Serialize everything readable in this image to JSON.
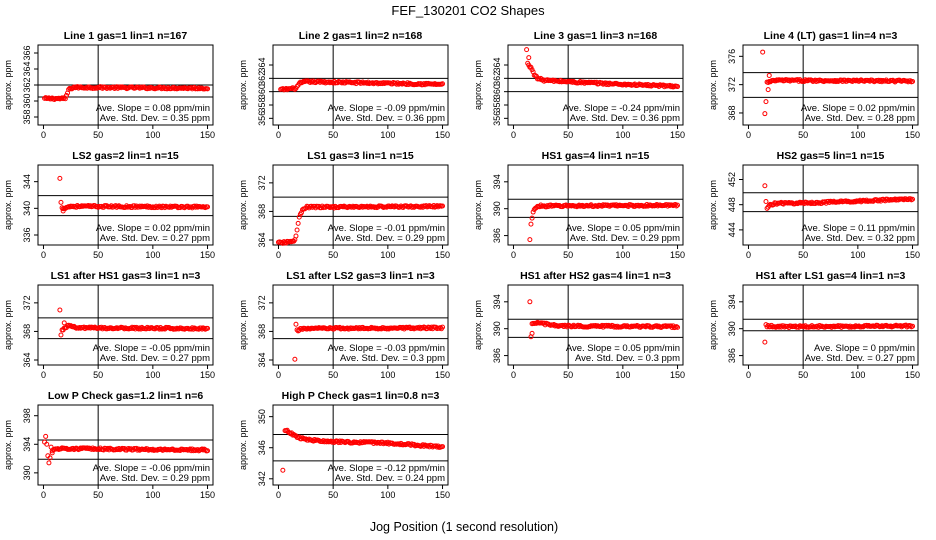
{
  "title": "FEF_130201  CO2 Shapes",
  "xlabel": "Jog Position (1 second resolution)",
  "marker_color": "#ff0000",
  "chart_data": [
    {
      "type": "scatter",
      "title": "Line 1 gas=1 lin=1 n=167",
      "ylabel": "approx. ppm",
      "xlim": [
        -5,
        155
      ],
      "ylim": [
        357,
        367
      ],
      "yticks": [
        358,
        360,
        362,
        364,
        366
      ],
      "xticks": [
        0,
        50,
        100,
        150
      ],
      "ref_lines": [
        362,
        360.5
      ],
      "stats": [
        "Ave. Slope = 0.08 ppm/min",
        "Ave. Std. Dev. = 0.35 ppm"
      ],
      "series": [
        {
          "name": "",
          "profile": [
            [
              1,
              360.3
            ],
            [
              20,
              360.3
            ],
            [
              23,
              361.4
            ],
            [
              27,
              361.7
            ],
            [
              150,
              361.6
            ]
          ],
          "outliers": []
        }
      ]
    },
    {
      "type": "scatter",
      "title": "Line 2 gas=1 lin=2 n=168",
      "ylabel": "approx. ppm",
      "xlim": [
        -5,
        155
      ],
      "ylim": [
        355,
        367
      ],
      "yticks": [
        356,
        358,
        360,
        362,
        364
      ],
      "xticks": [
        0,
        50,
        100,
        150
      ],
      "ref_lines": [
        362,
        360
      ],
      "stats": [
        "Ave. Slope = -0.09 ppm/min",
        "Ave. Std. Dev. = 0.36 ppm"
      ],
      "series": [
        {
          "name": "",
          "profile": [
            [
              2,
              360.3
            ],
            [
              16,
              360.5
            ],
            [
              20,
              361.3
            ],
            [
              25,
              361.5
            ],
            [
              150,
              361.1
            ]
          ],
          "outliers": []
        }
      ]
    },
    {
      "type": "scatter",
      "title": "Line 3 gas=1 lin=3 n=168",
      "ylabel": "approx. ppm",
      "xlim": [
        -5,
        155
      ],
      "ylim": [
        355,
        367
      ],
      "yticks": [
        356,
        358,
        360,
        362,
        364
      ],
      "xticks": [
        0,
        50,
        100,
        150
      ],
      "ref_lines": [
        362,
        360
      ],
      "stats": [
        "Ave. Slope = -0.24 ppm/min",
        "Ave. Std. Dev. = 0.36 ppm"
      ],
      "series": [
        {
          "name": "",
          "profile": [
            [
              13,
              364.2
            ],
            [
              15,
              363.7
            ],
            [
              17,
              363.4
            ],
            [
              19,
              362.6
            ],
            [
              22,
              362
            ],
            [
              28,
              361.7
            ],
            [
              60,
              361.4
            ],
            [
              100,
              361.1
            ],
            [
              150,
              360.8
            ]
          ],
          "outliers": [
            [
              12,
              366.3
            ],
            [
              14,
              365.1
            ]
          ]
        }
      ]
    },
    {
      "type": "scatter",
      "title": "Line 4 (LT) gas=1 lin=4 n=3",
      "ylabel": "approx. ppm",
      "xlim": [
        -5,
        155
      ],
      "ylim": [
        366.3,
        377.6
      ],
      "yticks": [
        368,
        372,
        376
      ],
      "xticks": [
        0,
        50,
        100,
        150
      ],
      "ref_lines": [
        373.7,
        370.2
      ],
      "stats": [
        "Ave. Slope = 0.02 ppm/min",
        "Ave. Std. Dev. = 0.28 ppm"
      ],
      "series": [
        {
          "name": "",
          "profile": [
            [
              17,
              372.3
            ],
            [
              25,
              372.6
            ],
            [
              150,
              372.5
            ]
          ],
          "outliers": [
            [
              13,
              376.6
            ],
            [
              15,
              367.9
            ],
            [
              16,
              369.6
            ],
            [
              18,
              371.3
            ],
            [
              19,
              373.3
            ]
          ]
        }
      ]
    },
    {
      "type": "scatter",
      "title": "LS2 gas=2 lin=1 n=15",
      "ylabel": "approx. ppm",
      "xlim": [
        -5,
        155
      ],
      "ylim": [
        334.5,
        346.5
      ],
      "yticks": [
        336,
        340,
        344
      ],
      "xticks": [
        0,
        50,
        100,
        150
      ],
      "ref_lines": [
        341.9,
        338.9
      ],
      "stats": [
        "Ave. Slope = 0.02 ppm/min",
        "Ave. Std. Dev. = 0.27 ppm"
      ],
      "series": [
        {
          "name": "",
          "profile": [
            [
              17,
              340
            ],
            [
              25,
              340.3
            ],
            [
              150,
              340.2
            ]
          ],
          "outliers": [
            [
              15,
              344.5
            ],
            [
              16,
              340.9
            ],
            [
              18,
              339.6
            ]
          ]
        }
      ]
    },
    {
      "type": "scatter",
      "title": "LS1 gas=3 lin=1 n=15",
      "ylabel": "approx. ppm",
      "xlim": [
        -5,
        155
      ],
      "ylim": [
        363.3,
        374.5
      ],
      "yticks": [
        364,
        368,
        372
      ],
      "xticks": [
        0,
        50,
        100,
        150
      ],
      "ref_lines": [
        370,
        367.3
      ],
      "stats": [
        "Ave. Slope = -0.01 ppm/min",
        "Ave. Std. Dev. = 0.29 ppm"
      ],
      "series": [
        {
          "name": "",
          "profile": [
            [
              0,
              363.6
            ],
            [
              10,
              363.7
            ],
            [
              15,
              364
            ],
            [
              17,
              365.3
            ],
            [
              19,
              367.2
            ],
            [
              22,
              368.2
            ],
            [
              26,
              368.6
            ],
            [
              150,
              368.7
            ]
          ],
          "outliers": []
        }
      ]
    },
    {
      "type": "scatter",
      "title": "HS1 gas=4 lin=1 n=15",
      "ylabel": "approx. ppm",
      "xlim": [
        -5,
        155
      ],
      "ylim": [
        384.6,
        396.5
      ],
      "yticks": [
        386,
        390,
        394
      ],
      "xticks": [
        0,
        50,
        100,
        150
      ],
      "ref_lines": [
        391.4,
        388.7
      ],
      "stats": [
        "Ave. Slope = 0.05 ppm/min",
        "Ave. Std. Dev. = 0.29 ppm"
      ],
      "series": [
        {
          "name": "",
          "profile": [
            [
              18,
              389.4
            ],
            [
              20,
              390.2
            ],
            [
              25,
              390.4
            ],
            [
              150,
              390.5
            ]
          ],
          "outliers": [
            [
              15,
              385.4
            ],
            [
              16,
              387.7
            ],
            [
              17,
              388.6
            ]
          ]
        }
      ]
    },
    {
      "type": "scatter",
      "title": "HS2 gas=5 lin=1 n=15",
      "ylabel": "approx. ppm",
      "xlim": [
        -5,
        155
      ],
      "ylim": [
        441.6,
        454.3
      ],
      "yticks": [
        444,
        448,
        452
      ],
      "xticks": [
        0,
        50,
        100,
        150
      ],
      "ref_lines": [
        449.9,
        446.9
      ],
      "stats": [
        "Ave. Slope = 0.11 ppm/min",
        "Ave. Std. Dev. = 0.32 ppm"
      ],
      "series": [
        {
          "name": "",
          "profile": [
            [
              17,
              447.3
            ],
            [
              19,
              447.9
            ],
            [
              24,
              448.2
            ],
            [
              60,
              448.3
            ],
            [
              150,
              448.9
            ]
          ],
          "outliers": [
            [
              15,
              451
            ],
            [
              16,
              448.5
            ]
          ]
        }
      ]
    },
    {
      "type": "scatter",
      "title": "LS1 after HS1 gas=3 lin=1 n=3",
      "ylabel": "approx. ppm",
      "xlim": [
        -5,
        155
      ],
      "ylim": [
        363.3,
        374.5
      ],
      "yticks": [
        364,
        368,
        372
      ],
      "xticks": [
        0,
        50,
        100,
        150
      ],
      "ref_lines": [
        369.9,
        367
      ],
      "stats": [
        "Ave. Slope = -0.05 ppm/min",
        "Ave. Std. Dev. = 0.27 ppm"
      ],
      "series": [
        {
          "name": "",
          "profile": [
            [
              17,
              368.1
            ],
            [
              22,
              368.8
            ],
            [
              30,
              368.5
            ],
            [
              150,
              368.4
            ]
          ],
          "outliers": [
            [
              15,
              371
            ],
            [
              16,
              367.5
            ],
            [
              19,
              369.2
            ]
          ]
        }
      ]
    },
    {
      "type": "scatter",
      "title": "LS1 after LS2 gas=3 lin=1 n=3",
      "ylabel": "approx. ppm",
      "xlim": [
        -5,
        155
      ],
      "ylim": [
        363.3,
        374.5
      ],
      "yticks": [
        364,
        368,
        372
      ],
      "xticks": [
        0,
        50,
        100,
        150
      ],
      "ref_lines": [
        369.9,
        367
      ],
      "stats": [
        "Ave. Slope = -0.03 ppm/min",
        "Ave. Std. Dev. = 0.3 ppm"
      ],
      "series": [
        {
          "name": "",
          "profile": [
            [
              17,
              368.1
            ],
            [
              22,
              368.4
            ],
            [
              150,
              368.5
            ]
          ],
          "outliers": [
            [
              15,
              364.1
            ],
            [
              16,
              369
            ]
          ]
        }
      ]
    },
    {
      "type": "scatter",
      "title": "HS1 after HS2 gas=4 lin=1 n=3",
      "ylabel": "approx. ppm",
      "xlim": [
        -5,
        155
      ],
      "ylim": [
        384.6,
        396.5
      ],
      "yticks": [
        386,
        390,
        394
      ],
      "xticks": [
        0,
        50,
        100,
        150
      ],
      "ref_lines": [
        391.4,
        388.7
      ],
      "stats": [
        "Ave. Slope = 0.05 ppm/min",
        "Ave. Std. Dev. = 0.3 ppm"
      ],
      "series": [
        {
          "name": "",
          "profile": [
            [
              17,
              390.6
            ],
            [
              22,
              390.9
            ],
            [
              40,
              390.4
            ],
            [
              150,
              390.3
            ]
          ],
          "outliers": [
            [
              15,
              394
            ],
            [
              16,
              388.8
            ],
            [
              17,
              389.3
            ]
          ]
        }
      ]
    },
    {
      "type": "scatter",
      "title": "HS1 after LS1 gas=4 lin=1 n=3",
      "ylabel": "approx. ppm",
      "xlim": [
        -5,
        155
      ],
      "ylim": [
        384.6,
        396.5
      ],
      "yticks": [
        386,
        390,
        394
      ],
      "xticks": [
        0,
        50,
        100,
        150
      ],
      "ref_lines": [
        391.4,
        389.7
      ],
      "stats": [
        "Ave. Slope = 0 ppm/min",
        "Ave. Std. Dev. = 0.27 ppm"
      ],
      "series": [
        {
          "name": "",
          "profile": [
            [
              17,
              390.4
            ],
            [
              30,
              390.3
            ],
            [
              150,
              390.4
            ]
          ],
          "outliers": [
            [
              15,
              388
            ],
            [
              16,
              390.6
            ]
          ]
        }
      ]
    },
    {
      "type": "scatter",
      "title": "Low P Check gas=1.2 lin=1 n=6",
      "ylabel": "approx. ppm",
      "xlim": [
        -5,
        155
      ],
      "ylim": [
        388.3,
        399.5
      ],
      "yticks": [
        390,
        394,
        398
      ],
      "xticks": [
        0,
        50,
        100,
        150
      ],
      "ref_lines": [
        394.6,
        391.9
      ],
      "stats": [
        "Ave. Slope = -0.06 ppm/min",
        "Ave. Std. Dev. = 0.29 ppm"
      ],
      "series": [
        {
          "name": "",
          "profile": [
            [
              8,
              393.2
            ],
            [
              15,
              393.4
            ],
            [
              150,
              393.2
            ]
          ],
          "outliers": [
            [
              1,
              394.3
            ],
            [
              2,
              395.1
            ],
            [
              3,
              394
            ],
            [
              4,
              392.4
            ],
            [
              5,
              391.4
            ],
            [
              6,
              392.1
            ],
            [
              7,
              393.6
            ],
            [
              8,
              392.8
            ]
          ]
        }
      ]
    },
    {
      "type": "scatter",
      "title": "High P Check gas=1 lin=0.8 n=3",
      "ylabel": "approx. ppm",
      "xlim": [
        -5,
        155
      ],
      "ylim": [
        341.2,
        351.5
      ],
      "yticks": [
        342,
        346,
        350
      ],
      "xticks": [
        0,
        50,
        100,
        150
      ],
      "ref_lines": [
        347.7,
        344.3
      ],
      "stats": [
        "Ave. Slope = -0.12 ppm/min",
        "Ave. Std. Dev. = 0.24 ppm"
      ],
      "series": [
        {
          "name": "",
          "profile": [
            [
              6,
              348.3
            ],
            [
              12,
              347.8
            ],
            [
              20,
              347.2
            ],
            [
              40,
              346.8
            ],
            [
              100,
              346.6
            ],
            [
              150,
              346.1
            ]
          ],
          "outliers": [
            [
              4,
              343.1
            ]
          ]
        }
      ]
    }
  ]
}
